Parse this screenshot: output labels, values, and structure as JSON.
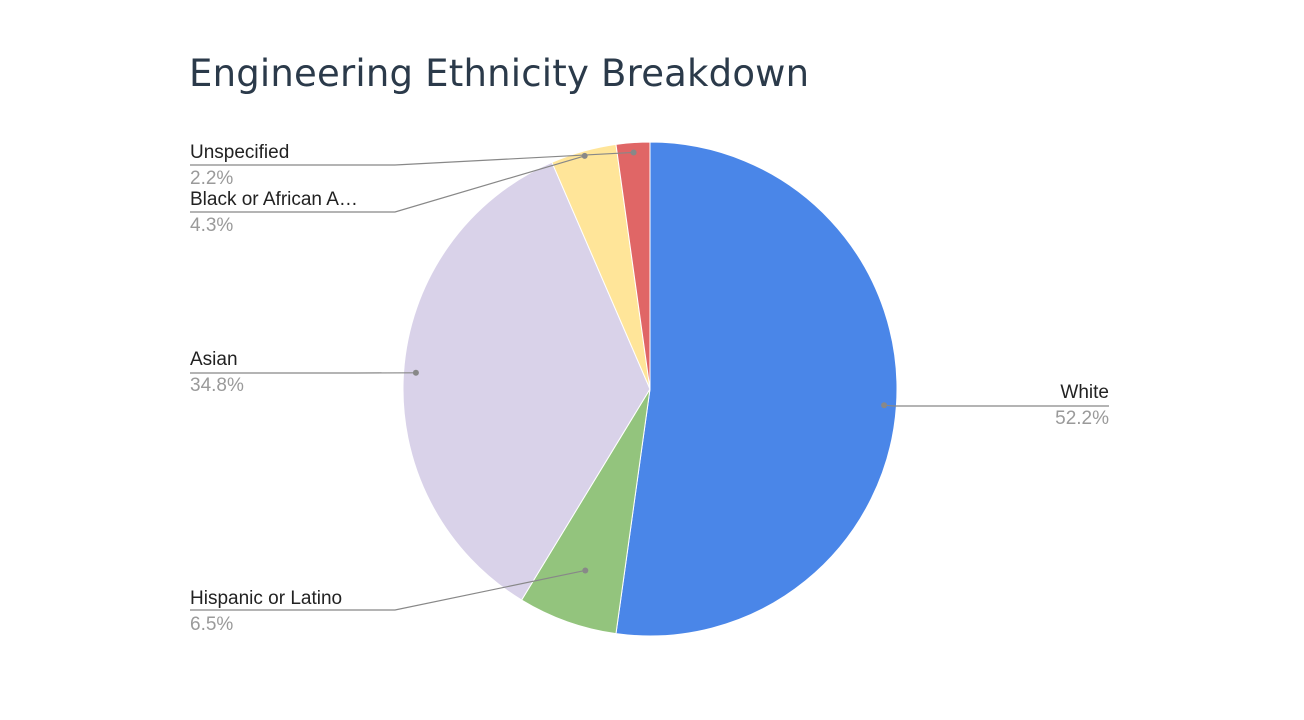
{
  "chart_data": {
    "type": "pie",
    "title": "Engineering Ethnicity Breakdown",
    "legend": "none",
    "slices": [
      {
        "label": "White",
        "value": 52.2,
        "percent_label": "52.2%",
        "color": "#4a86e8"
      },
      {
        "label": "Hispanic or Latino",
        "value": 6.5,
        "percent_label": "6.5%",
        "color": "#93c47d"
      },
      {
        "label": "Asian",
        "value": 34.8,
        "percent_label": "34.8%",
        "color": "#d9d2e9"
      },
      {
        "label": "Black or African A…",
        "value": 4.3,
        "percent_label": "4.3%",
        "color": "#ffe599"
      },
      {
        "label": "Unspecified",
        "value": 2.2,
        "percent_label": "2.2%",
        "color": "#e06666"
      }
    ]
  },
  "colors": {
    "title": "#2b3a4a",
    "label": "#222222",
    "percent": "#9a9a9a",
    "leader_line": "#888888"
  }
}
